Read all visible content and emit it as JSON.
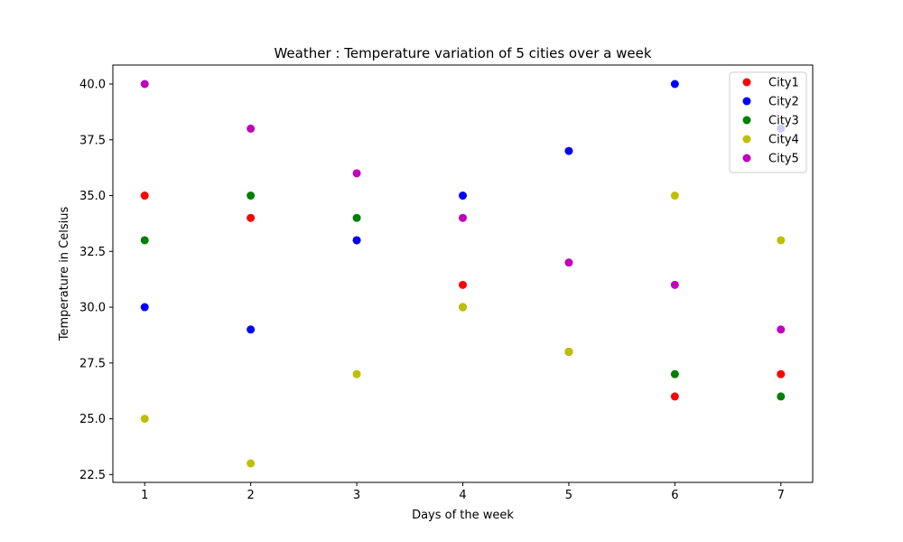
{
  "chart_data": {
    "type": "scatter",
    "title": "Weather : Temperature variation of 5 cities over a week",
    "xlabel": "Days of the week",
    "ylabel": "Temperature in Celsius",
    "x": [
      1,
      2,
      3,
      4,
      5,
      6,
      7
    ],
    "x_ticks": [
      "1",
      "2",
      "3",
      "4",
      "5",
      "6",
      "7"
    ],
    "y_ticks": [
      "22.5",
      "25.0",
      "27.5",
      "30.0",
      "32.5",
      "35.0",
      "37.5",
      "40.0"
    ],
    "xlim": [
      0.7,
      7.3
    ],
    "ylim": [
      22.15,
      40.85
    ],
    "grid": false,
    "legend_position": "top-right",
    "series": [
      {
        "name": "City1",
        "color": "#ff0000",
        "values": [
          35,
          34,
          33,
          31,
          28,
          26,
          27
        ]
      },
      {
        "name": "City2",
        "color": "#0000ff",
        "values": [
          30,
          29,
          33,
          35,
          37,
          40,
          38
        ]
      },
      {
        "name": "City3",
        "color": "#008000",
        "values": [
          33,
          35,
          34,
          30,
          28,
          27,
          26
        ]
      },
      {
        "name": "City4",
        "color": "#bfbf00",
        "values": [
          25,
          23,
          27,
          30,
          28,
          35,
          33
        ]
      },
      {
        "name": "City5",
        "color": "#bf00bf",
        "values": [
          40,
          38,
          36,
          34,
          32,
          31,
          29
        ]
      }
    ]
  }
}
